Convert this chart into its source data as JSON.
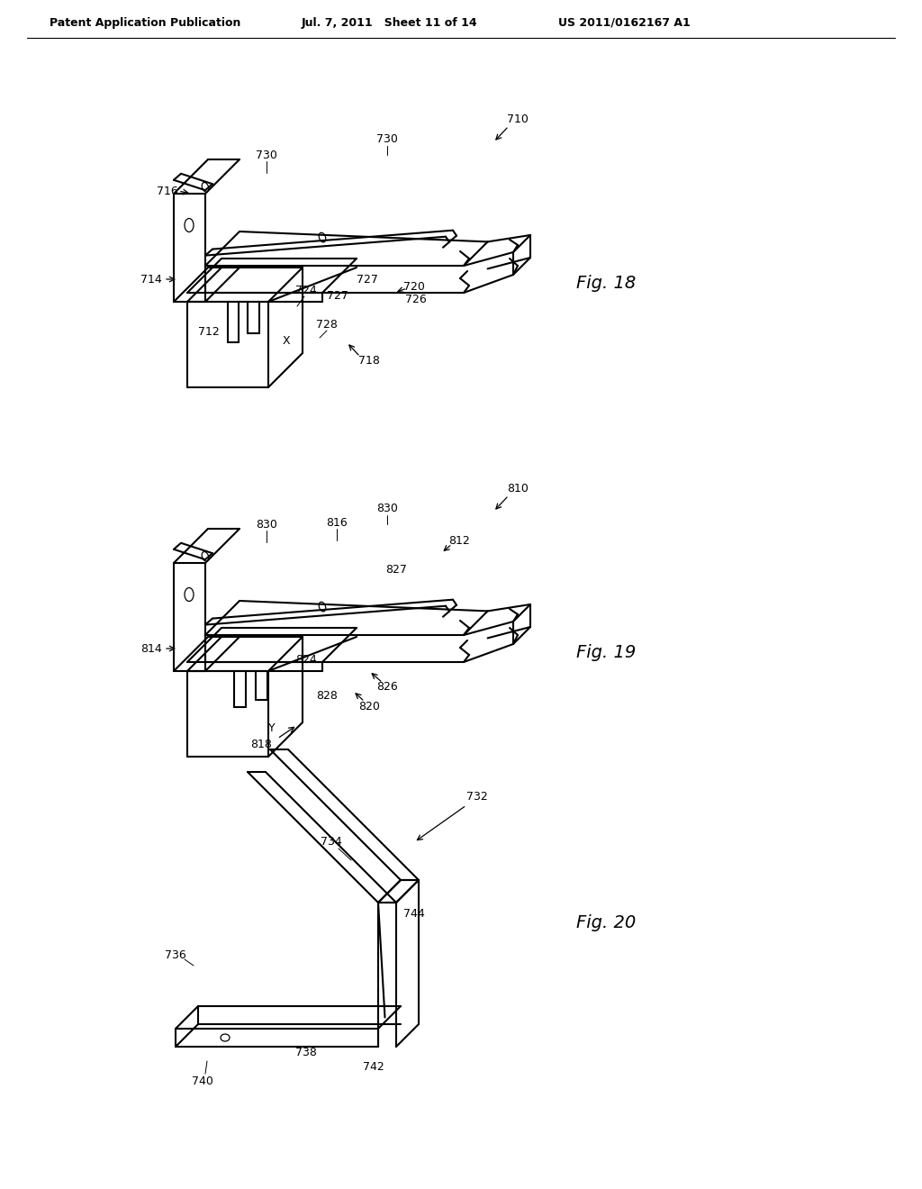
{
  "bg_color": "#ffffff",
  "header_left": "Patent Application Publication",
  "header_mid": "Jul. 7, 2011   Sheet 11 of 14",
  "header_right": "US 2011/0162167 A1",
  "fig18_label": "Fig. 18",
  "fig19_label": "Fig. 19",
  "fig20_label": "Fig. 20",
  "line_color": "#000000",
  "line_width": 1.5,
  "thin_line": 0.8
}
